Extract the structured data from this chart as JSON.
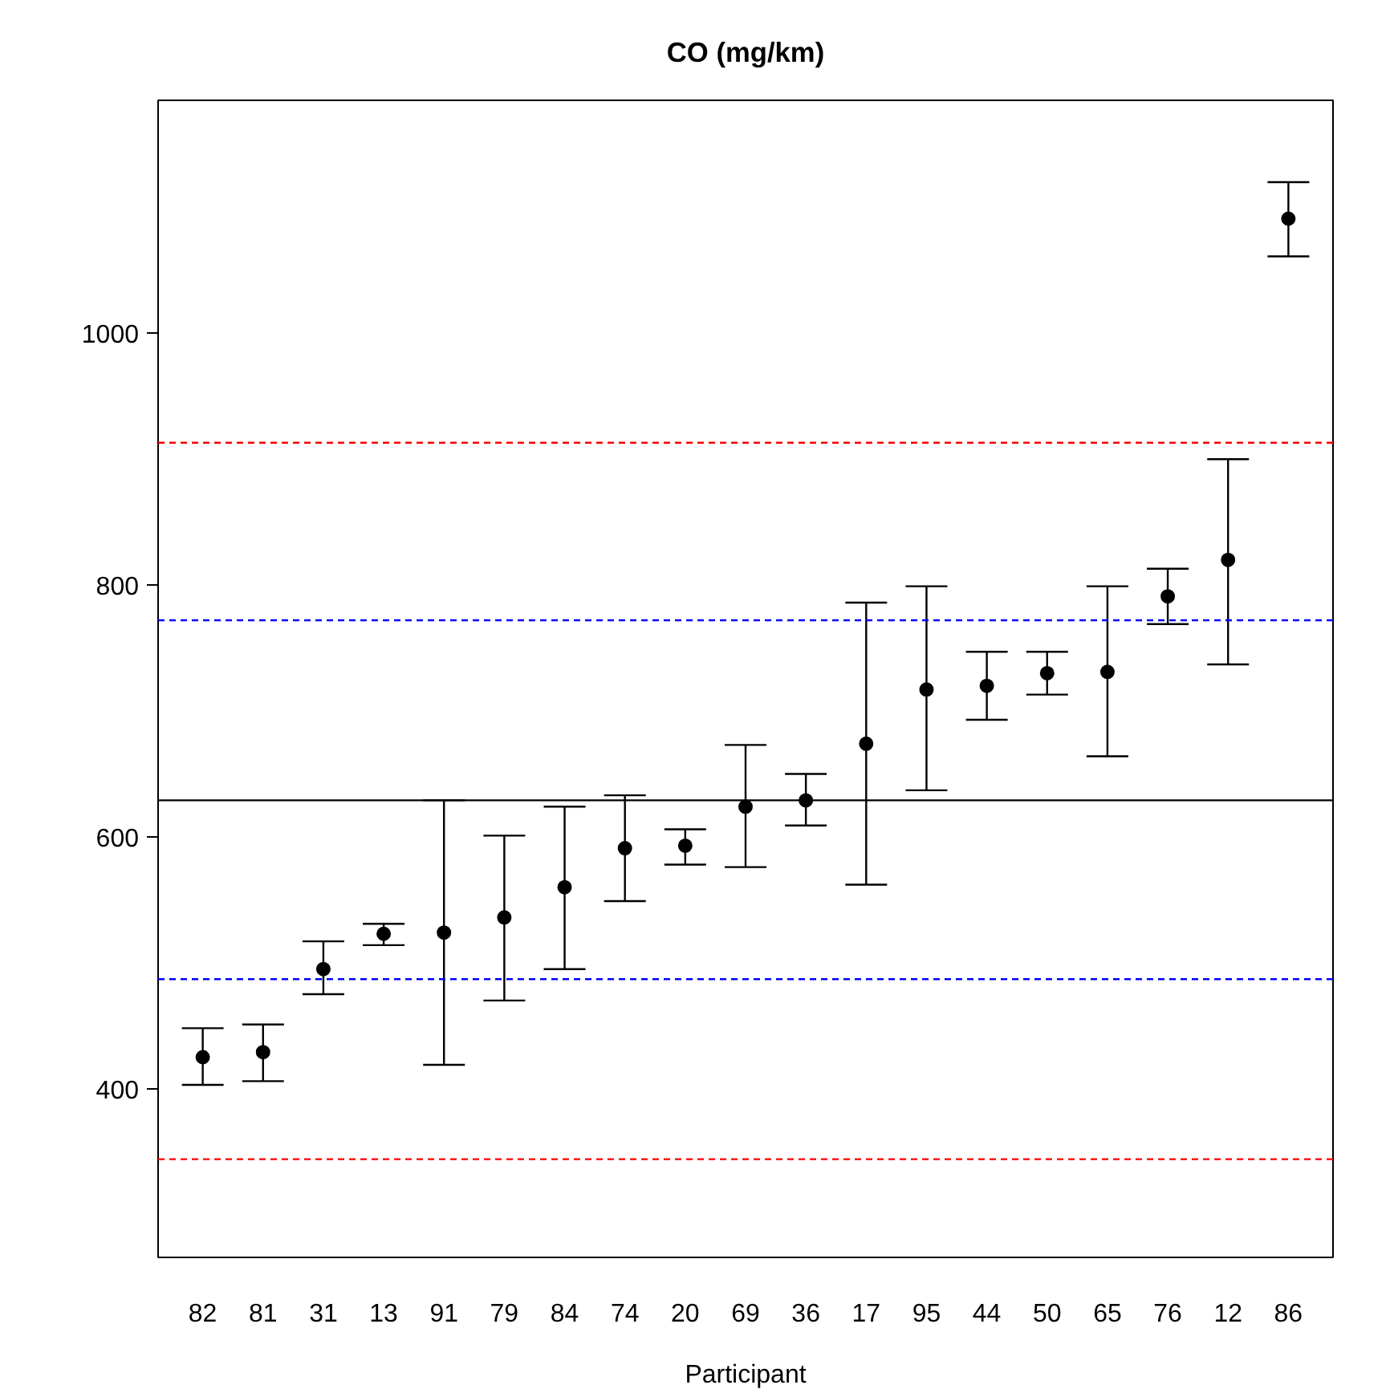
{
  "chart_data": {
    "type": "scatter",
    "title": "CO (mg/km)",
    "xlabel": "Participant",
    "categories": [
      "82",
      "81",
      "31",
      "13",
      "91",
      "79",
      "84",
      "74",
      "20",
      "69",
      "36",
      "17",
      "95",
      "44",
      "50",
      "65",
      "76",
      "12",
      "86"
    ],
    "series": [
      {
        "color": "#000000",
        "values": [
          425,
          429,
          495,
          523,
          524,
          536,
          560,
          591,
          593,
          624,
          629,
          674,
          717,
          720,
          730,
          731,
          791,
          820,
          1091
        ],
        "errors": [
          [
            403,
            448
          ],
          [
            406,
            451
          ],
          [
            475,
            517
          ],
          [
            514,
            531
          ],
          [
            419,
            629
          ],
          [
            470,
            601
          ],
          [
            495,
            624
          ],
          [
            549,
            633
          ],
          [
            578,
            606
          ],
          [
            576,
            673
          ],
          [
            609,
            650
          ],
          [
            562,
            786
          ],
          [
            637,
            799
          ],
          [
            693,
            747
          ],
          [
            713,
            747
          ],
          [
            664,
            799
          ],
          [
            769,
            813
          ],
          [
            737,
            900
          ],
          [
            1061,
            1120
          ]
        ]
      }
    ],
    "ylim": [
      266,
      1185
    ],
    "yticks": [
      400,
      600,
      800,
      1000
    ],
    "grid": false,
    "marker": "circle",
    "ref_lines": [
      {
        "axis": "y",
        "value": 629,
        "color": "#000000",
        "line_style": "solid"
      },
      {
        "axis": "y",
        "value": 772,
        "color": "#0000ff",
        "line_style": "dashed"
      },
      {
        "axis": "y",
        "value": 487,
        "color": "#0000ff",
        "line_style": "dashed"
      },
      {
        "axis": "y",
        "value": 913,
        "color": "#ff0000",
        "line_style": "dashed"
      },
      {
        "axis": "y",
        "value": 344,
        "color": "#ff0000",
        "line_style": "dashed"
      }
    ]
  }
}
